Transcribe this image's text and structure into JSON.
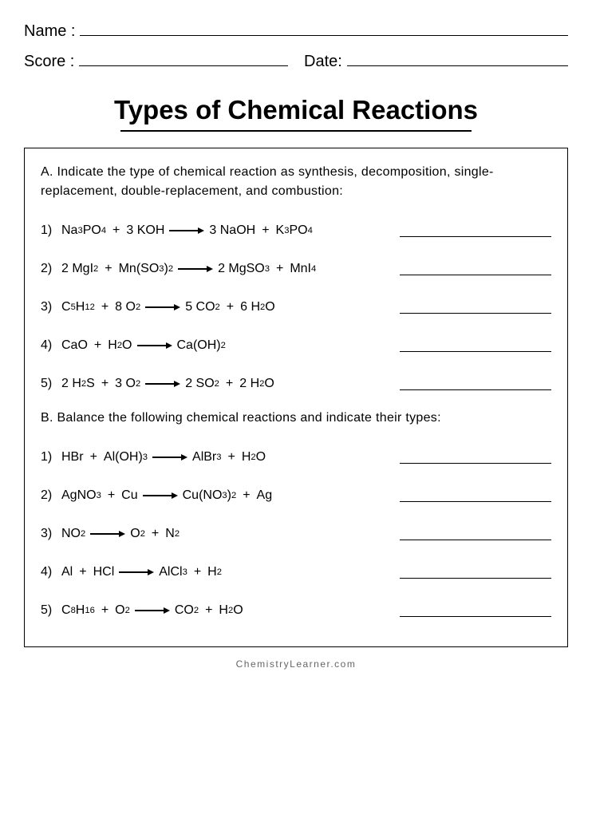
{
  "header": {
    "name_label": "Name :",
    "score_label": "Score :",
    "date_label": "Date:"
  },
  "title": "Types of Chemical Reactions",
  "section_a": {
    "label": "A. Indicate the type of chemical reaction as synthesis, decomposition, single-replacement, double-replacement, and combustion:",
    "items": [
      {
        "num": "1)",
        "reactants": [
          {
            "c": "",
            "f": "Na",
            "s": "3"
          },
          {
            "f": "PO",
            "s": "4"
          },
          {
            "plus": true
          },
          {
            "c": "3 ",
            "f": "KOH",
            "s": ""
          }
        ],
        "products": [
          {
            "c": "3 ",
            "f": "NaOH",
            "s": ""
          },
          {
            "plus": true
          },
          {
            "c": "",
            "f": "K",
            "s": "3"
          },
          {
            "f": "PO",
            "s": "4"
          }
        ]
      },
      {
        "num": "2)",
        "reactants": [
          {
            "c": "2 ",
            "f": "MgI",
            "s": "2"
          },
          {
            "plus": true
          },
          {
            "c": "",
            "f": "Mn(SO",
            "s": "3"
          },
          {
            "f": ")",
            "s": "2"
          }
        ],
        "products": [
          {
            "c": "2 ",
            "f": "MgSO",
            "s": "3"
          },
          {
            "plus": true
          },
          {
            "c": "",
            "f": "MnI",
            "s": "4"
          }
        ]
      },
      {
        "num": "3)",
        "reactants": [
          {
            "c": "",
            "f": "C",
            "s": "5"
          },
          {
            "f": "H",
            "s": "12"
          },
          {
            "plus": true
          },
          {
            "c": "8 ",
            "f": "O",
            "s": "2"
          }
        ],
        "products": [
          {
            "c": "5 ",
            "f": "CO",
            "s": "2"
          },
          {
            "plus": true
          },
          {
            "c": "6 ",
            "f": "H",
            "s": "2"
          },
          {
            "f": "O",
            "s": ""
          }
        ]
      },
      {
        "num": "4)",
        "reactants": [
          {
            "c": "",
            "f": "CaO",
            "s": ""
          },
          {
            "plus": true
          },
          {
            "c": "",
            "f": "H",
            "s": "2"
          },
          {
            "f": "O",
            "s": ""
          }
        ],
        "products": [
          {
            "c": "",
            "f": "Ca(OH)",
            "s": "2"
          }
        ]
      },
      {
        "num": "5)",
        "reactants": [
          {
            "c": "2 ",
            "f": "H",
            "s": "2"
          },
          {
            "f": "S",
            "s": ""
          },
          {
            "plus": true
          },
          {
            "c": "3 ",
            "f": "O",
            "s": "2"
          }
        ],
        "products": [
          {
            "c": "2 ",
            "f": "SO",
            "s": "2"
          },
          {
            "plus": true
          },
          {
            "c": "2 ",
            "f": "H",
            "s": "2"
          },
          {
            "f": "O",
            "s": ""
          }
        ]
      }
    ]
  },
  "section_b": {
    "label": "B. Balance the following chemical reactions and indicate their types:",
    "items": [
      {
        "num": "1)",
        "reactants": [
          {
            "c": "",
            "f": "HBr",
            "s": ""
          },
          {
            "plus": true
          },
          {
            "c": "",
            "f": "Al(OH)",
            "s": "3"
          }
        ],
        "products": [
          {
            "c": "",
            "f": "AlBr",
            "s": "3"
          },
          {
            "plus": true
          },
          {
            "c": "",
            "f": "H",
            "s": "2"
          },
          {
            "f": "O",
            "s": ""
          }
        ]
      },
      {
        "num": "2)",
        "reactants": [
          {
            "c": "",
            "f": "AgNO",
            "s": "3"
          },
          {
            "plus": true
          },
          {
            "c": "",
            "f": "Cu",
            "s": ""
          }
        ],
        "products": [
          {
            "c": "",
            "f": "Cu(NO",
            "s": "3"
          },
          {
            "f": ")",
            "s": "2"
          },
          {
            "plus": true
          },
          {
            "c": "",
            "f": "Ag",
            "s": ""
          }
        ]
      },
      {
        "num": "3)",
        "reactants": [
          {
            "c": "",
            "f": "NO",
            "s": "2"
          }
        ],
        "products": [
          {
            "c": "",
            "f": "O",
            "s": "2"
          },
          {
            "plus": true
          },
          {
            "c": "",
            "f": "N",
            "s": "2"
          }
        ]
      },
      {
        "num": "4)",
        "reactants": [
          {
            "c": "",
            "f": "Al",
            "s": ""
          },
          {
            "plus": true
          },
          {
            "c": "",
            "f": "HCl",
            "s": ""
          }
        ],
        "products": [
          {
            "c": "",
            "f": "AlCl",
            "s": "3"
          },
          {
            "plus": true
          },
          {
            "c": "",
            "f": "H",
            "s": "2"
          }
        ]
      },
      {
        "num": "5)",
        "reactants": [
          {
            "c": "",
            "f": "C",
            "s": "8"
          },
          {
            "f": "H",
            "s": "16"
          },
          {
            "plus": true
          },
          {
            "c": "",
            "f": "O",
            "s": "2"
          }
        ],
        "products": [
          {
            "c": "",
            "f": "CO",
            "s": "2"
          },
          {
            "plus": true
          },
          {
            "c": "",
            "f": "H",
            "s": "2"
          },
          {
            "f": "O",
            "s": ""
          }
        ]
      }
    ]
  },
  "footer": "ChemistryLearner.com",
  "colors": {
    "text": "#000000",
    "bg": "#ffffff",
    "footer": "#666666"
  }
}
